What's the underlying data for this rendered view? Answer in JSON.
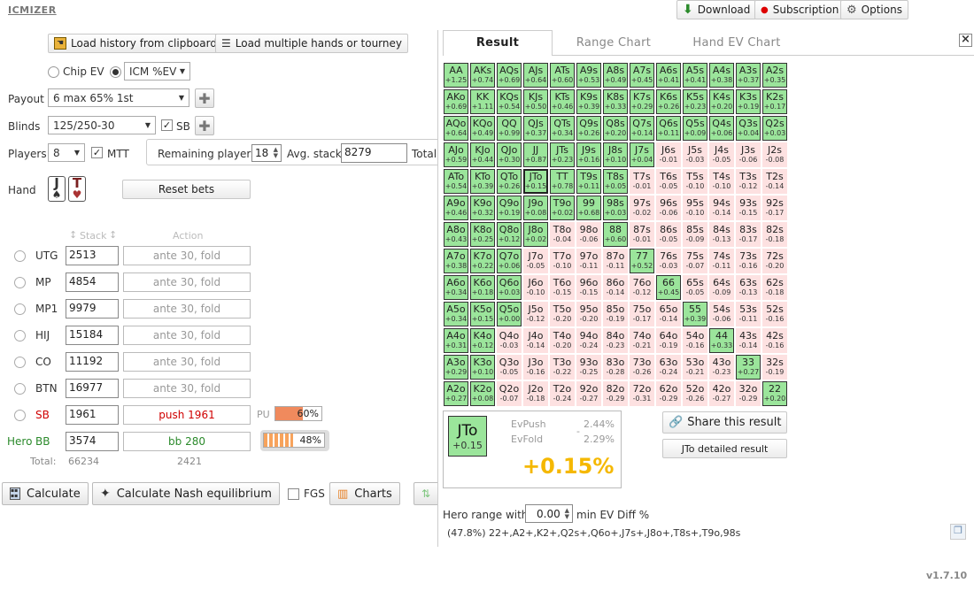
{
  "app": {
    "logo": "ICMIZER",
    "version": "v1.7.10"
  },
  "topbar": {
    "download": "Download",
    "subscription": "Subscription",
    "options": "Options"
  },
  "toolbar": {
    "load_history": "Load history from clipboard",
    "load_multiple": "Load multiple hands or tourney"
  },
  "mode": {
    "chip_ev": "Chip EV",
    "icm_value": "ICM %EV"
  },
  "payout": {
    "label": "Payout",
    "value": "6 max 65% 1st"
  },
  "blinds": {
    "label": "Blinds",
    "value": "125/250-30",
    "sb_label": "SB"
  },
  "players": {
    "label": "Players",
    "value": "8",
    "mtt_label": "MTT",
    "remaining_label": "Remaining players",
    "remaining_value": "18",
    "avg_stack_label": "Avg. stack",
    "avg_stack_value": "8279",
    "total_label": "Total"
  },
  "hand": {
    "label": "Hand",
    "card1": "J",
    "suit1": "♠",
    "card2": "T",
    "suit2": "♥",
    "reset_bets": "Reset bets"
  },
  "table_headers": {
    "stack": "Stack",
    "action": "Action"
  },
  "positions": [
    {
      "pos": "UTG",
      "stack": "2513",
      "action": "ante 30, fold"
    },
    {
      "pos": "MP",
      "stack": "4854",
      "action": "ante 30, fold"
    },
    {
      "pos": "MP1",
      "stack": "9979",
      "action": "ante 30, fold"
    },
    {
      "pos": "HIJ",
      "stack": "15184",
      "action": "ante 30, fold"
    },
    {
      "pos": "CO",
      "stack": "11192",
      "action": "ante 30, fold"
    },
    {
      "pos": "BTN",
      "stack": "16977",
      "action": "ante 30, fold"
    },
    {
      "pos": "SB",
      "stack": "1961",
      "action": "push 1961"
    },
    {
      "pos": "BB",
      "stack": "3574",
      "action": "bb 280"
    }
  ],
  "hero_label": "Hero",
  "pu_label": "PU",
  "sb_push_range": "60%",
  "sb_push_fraction": 0.6,
  "bb_call_range": "48%",
  "bb_call_fraction": 0.48,
  "totals": {
    "label": "Total:",
    "stack": "66234",
    "action": "2421"
  },
  "bottom": {
    "calculate": "Calculate",
    "nash": "Calculate Nash equilibrium",
    "fgs": "FGS",
    "charts": "Charts"
  },
  "tabs": {
    "result": "Result",
    "range_chart": "Range Chart",
    "hand_ev_chart": "Hand EV Chart",
    "close": "×"
  },
  "result": {
    "hand": "JTo",
    "hand_ev": "+0.15",
    "evpush_label": "EvPush",
    "evpush": "2.44%",
    "evfold_label": "EvFold",
    "evfold": "2.29%",
    "diff": "+0.15%",
    "share": "Share this result",
    "detailed": "JTo detailed result"
  },
  "hero_range": {
    "label_a": "Hero range with",
    "value": "0.00",
    "label_b": "min EV Diff %",
    "text": "(47.8%) 22+,A2+,K2+,Q2s+,Q6o+,J7s+,J8o+,T8s+,T9o,98s"
  },
  "colors": {
    "positive": "#9be59b",
    "negative": "#fde1e1",
    "accent": "#f5b800",
    "push_red": "#d00000",
    "bb_green": "#2b8a2b"
  },
  "grid": [
    [
      "AA",
      "+1.25"
    ],
    [
      "AKs",
      "+0.74"
    ],
    [
      "AQs",
      "+0.69"
    ],
    [
      "AJs",
      "+0.64"
    ],
    [
      "ATs",
      "+0.60"
    ],
    [
      "A9s",
      "+0.53"
    ],
    [
      "A8s",
      "+0.49"
    ],
    [
      "A7s",
      "+0.45"
    ],
    [
      "A6s",
      "+0.41"
    ],
    [
      "A5s",
      "+0.41"
    ],
    [
      "A4s",
      "+0.38"
    ],
    [
      "A3s",
      "+0.37"
    ],
    [
      "A2s",
      "+0.35"
    ],
    [
      "AKo",
      "+0.69"
    ],
    [
      "KK",
      "+1.11"
    ],
    [
      "KQs",
      "+0.54"
    ],
    [
      "KJs",
      "+0.50"
    ],
    [
      "KTs",
      "+0.46"
    ],
    [
      "K9s",
      "+0.39"
    ],
    [
      "K8s",
      "+0.33"
    ],
    [
      "K7s",
      "+0.29"
    ],
    [
      "K6s",
      "+0.26"
    ],
    [
      "K5s",
      "+0.23"
    ],
    [
      "K4s",
      "+0.20"
    ],
    [
      "K3s",
      "+0.19"
    ],
    [
      "K2s",
      "+0.17"
    ],
    [
      "AQo",
      "+0.64"
    ],
    [
      "KQo",
      "+0.49"
    ],
    [
      "QQ",
      "+0.99"
    ],
    [
      "QJs",
      "+0.37"
    ],
    [
      "QTs",
      "+0.34"
    ],
    [
      "Q9s",
      "+0.26"
    ],
    [
      "Q8s",
      "+0.20"
    ],
    [
      "Q7s",
      "+0.14"
    ],
    [
      "Q6s",
      "+0.11"
    ],
    [
      "Q5s",
      "+0.09"
    ],
    [
      "Q4s",
      "+0.06"
    ],
    [
      "Q3s",
      "+0.04"
    ],
    [
      "Q2s",
      "+0.03"
    ],
    [
      "AJo",
      "+0.59"
    ],
    [
      "KJo",
      "+0.44"
    ],
    [
      "QJo",
      "+0.30"
    ],
    [
      "JJ",
      "+0.87"
    ],
    [
      "JTs",
      "+0.23"
    ],
    [
      "J9s",
      "+0.16"
    ],
    [
      "J8s",
      "+0.10"
    ],
    [
      "J7s",
      "+0.04"
    ],
    [
      "J6s",
      "-0.01"
    ],
    [
      "J5s",
      "-0.03"
    ],
    [
      "J4s",
      "-0.05"
    ],
    [
      "J3s",
      "-0.06"
    ],
    [
      "J2s",
      "-0.08"
    ],
    [
      "ATo",
      "+0.54"
    ],
    [
      "KTo",
      "+0.39"
    ],
    [
      "QTo",
      "+0.26"
    ],
    [
      "JTo",
      "+0.15"
    ],
    [
      "TT",
      "+0.78"
    ],
    [
      "T9s",
      "+0.11"
    ],
    [
      "T8s",
      "+0.05"
    ],
    [
      "T7s",
      "-0.01"
    ],
    [
      "T6s",
      "-0.05"
    ],
    [
      "T5s",
      "-0.10"
    ],
    [
      "T4s",
      "-0.10"
    ],
    [
      "T3s",
      "-0.12"
    ],
    [
      "T2s",
      "-0.14"
    ],
    [
      "A9o",
      "+0.46"
    ],
    [
      "K9o",
      "+0.32"
    ],
    [
      "Q9o",
      "+0.19"
    ],
    [
      "J9o",
      "+0.08"
    ],
    [
      "T9o",
      "+0.02"
    ],
    [
      "99",
      "+0.68"
    ],
    [
      "98s",
      "+0.03"
    ],
    [
      "97s",
      "-0.02"
    ],
    [
      "96s",
      "-0.06"
    ],
    [
      "95s",
      "-0.10"
    ],
    [
      "94s",
      "-0.14"
    ],
    [
      "93s",
      "-0.15"
    ],
    [
      "92s",
      "-0.17"
    ],
    [
      "A8o",
      "+0.43"
    ],
    [
      "K8o",
      "+0.25"
    ],
    [
      "Q8o",
      "+0.12"
    ],
    [
      "J8o",
      "+0.02"
    ],
    [
      "T8o",
      "-0.04"
    ],
    [
      "98o",
      "-0.06"
    ],
    [
      "88",
      "+0.60"
    ],
    [
      "87s",
      "-0.01"
    ],
    [
      "86s",
      "-0.05"
    ],
    [
      "85s",
      "-0.09"
    ],
    [
      "84s",
      "-0.13"
    ],
    [
      "83s",
      "-0.17"
    ],
    [
      "82s",
      "-0.18"
    ],
    [
      "A7o",
      "+0.38"
    ],
    [
      "K7o",
      "+0.22"
    ],
    [
      "Q7o",
      "+0.06"
    ],
    [
      "J7o",
      "-0.05"
    ],
    [
      "T7o",
      "-0.10"
    ],
    [
      "97o",
      "-0.11"
    ],
    [
      "87o",
      "-0.11"
    ],
    [
      "77",
      "+0.52"
    ],
    [
      "76s",
      "-0.03"
    ],
    [
      "75s",
      "-0.07"
    ],
    [
      "74s",
      "-0.11"
    ],
    [
      "73s",
      "-0.16"
    ],
    [
      "72s",
      "-0.20"
    ],
    [
      "A6o",
      "+0.34"
    ],
    [
      "K6o",
      "+0.18"
    ],
    [
      "Q6o",
      "+0.03"
    ],
    [
      "J6o",
      "-0.10"
    ],
    [
      "T6o",
      "-0.15"
    ],
    [
      "96o",
      "-0.15"
    ],
    [
      "86o",
      "-0.14"
    ],
    [
      "76o",
      "-0.12"
    ],
    [
      "66",
      "+0.45"
    ],
    [
      "65s",
      "-0.05"
    ],
    [
      "64s",
      "-0.09"
    ],
    [
      "63s",
      "-0.13"
    ],
    [
      "62s",
      "-0.18"
    ],
    [
      "A5o",
      "+0.34"
    ],
    [
      "K5o",
      "+0.15"
    ],
    [
      "Q5o",
      "+0.00"
    ],
    [
      "J5o",
      "-0.12"
    ],
    [
      "T5o",
      "-0.20"
    ],
    [
      "95o",
      "-0.20"
    ],
    [
      "85o",
      "-0.19"
    ],
    [
      "75o",
      "-0.17"
    ],
    [
      "65o",
      "-0.14"
    ],
    [
      "55",
      "+0.39"
    ],
    [
      "54s",
      "-0.06"
    ],
    [
      "53s",
      "-0.11"
    ],
    [
      "52s",
      "-0.16"
    ],
    [
      "A4o",
      "+0.31"
    ],
    [
      "K4o",
      "+0.12"
    ],
    [
      "Q4o",
      "-0.03"
    ],
    [
      "J4o",
      "-0.14"
    ],
    [
      "T4o",
      "-0.20"
    ],
    [
      "94o",
      "-0.24"
    ],
    [
      "84o",
      "-0.23"
    ],
    [
      "74o",
      "-0.21"
    ],
    [
      "64o",
      "-0.19"
    ],
    [
      "54o",
      "-0.16"
    ],
    [
      "44",
      "+0.33"
    ],
    [
      "43s",
      "-0.14"
    ],
    [
      "42s",
      "-0.16"
    ],
    [
      "A3o",
      "+0.29"
    ],
    [
      "K3o",
      "+0.10"
    ],
    [
      "Q3o",
      "-0.05"
    ],
    [
      "J3o",
      "-0.16"
    ],
    [
      "T3o",
      "-0.22"
    ],
    [
      "93o",
      "-0.25"
    ],
    [
      "83o",
      "-0.28"
    ],
    [
      "73o",
      "-0.26"
    ],
    [
      "63o",
      "-0.24"
    ],
    [
      "53o",
      "-0.21"
    ],
    [
      "43o",
      "-0.23"
    ],
    [
      "33",
      "+0.27"
    ],
    [
      "32s",
      "-0.19"
    ],
    [
      "A2o",
      "+0.27"
    ],
    [
      "K2o",
      "+0.08"
    ],
    [
      "Q2o",
      "-0.07"
    ],
    [
      "J2o",
      "-0.18"
    ],
    [
      "T2o",
      "-0.24"
    ],
    [
      "92o",
      "-0.27"
    ],
    [
      "82o",
      "-0.29"
    ],
    [
      "72o",
      "-0.31"
    ],
    [
      "62o",
      "-0.29"
    ],
    [
      "52o",
      "-0.26"
    ],
    [
      "42o",
      "-0.27"
    ],
    [
      "32o",
      "-0.29"
    ],
    [
      "22",
      "+0.20"
    ]
  ]
}
